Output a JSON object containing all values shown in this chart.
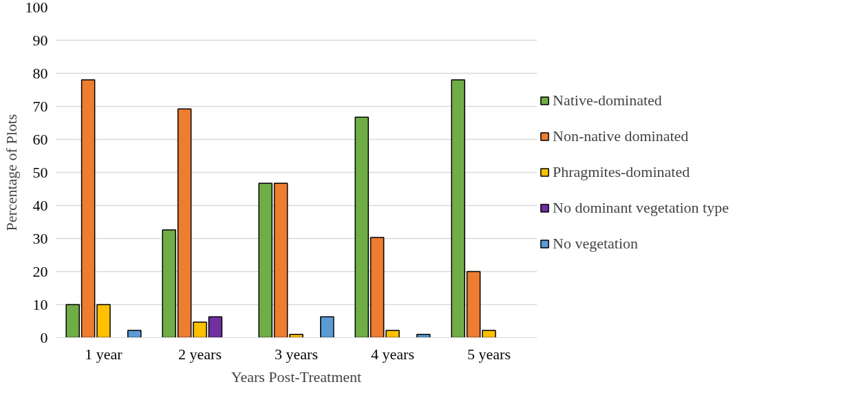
{
  "chart_data": {
    "type": "bar",
    "xlabel": "Years Post-Treatment",
    "ylabel": "Percentage of Plots",
    "categories": [
      "1 year",
      "2 years",
      "3 years",
      "4 years",
      "5 years"
    ],
    "series": [
      {
        "name": "Native-dominated",
        "color": "#70ad47",
        "values": [
          10,
          32.6,
          46.7,
          66.7,
          78
        ]
      },
      {
        "name": "Non-native dominated",
        "color": "#ed7d31",
        "values": [
          78,
          69.2,
          46.7,
          30.3,
          20
        ]
      },
      {
        "name": "Phragmites-dominated",
        "color": "#ffc000",
        "values": [
          10,
          4.7,
          1,
          2.2,
          2.2
        ]
      },
      {
        "name": "No dominant vegetation type",
        "color": "#7030a0",
        "values": [
          null,
          6.3,
          null,
          null,
          null
        ]
      },
      {
        "name": "No vegetation",
        "color": "#5b9bd5",
        "values": [
          2.2,
          null,
          6.3,
          1,
          null
        ]
      }
    ],
    "ylim": [
      0,
      100
    ],
    "yticks": [
      0,
      10,
      20,
      30,
      40,
      50,
      60,
      70,
      80,
      90,
      100
    ],
    "grid": "y",
    "legend": "right"
  }
}
